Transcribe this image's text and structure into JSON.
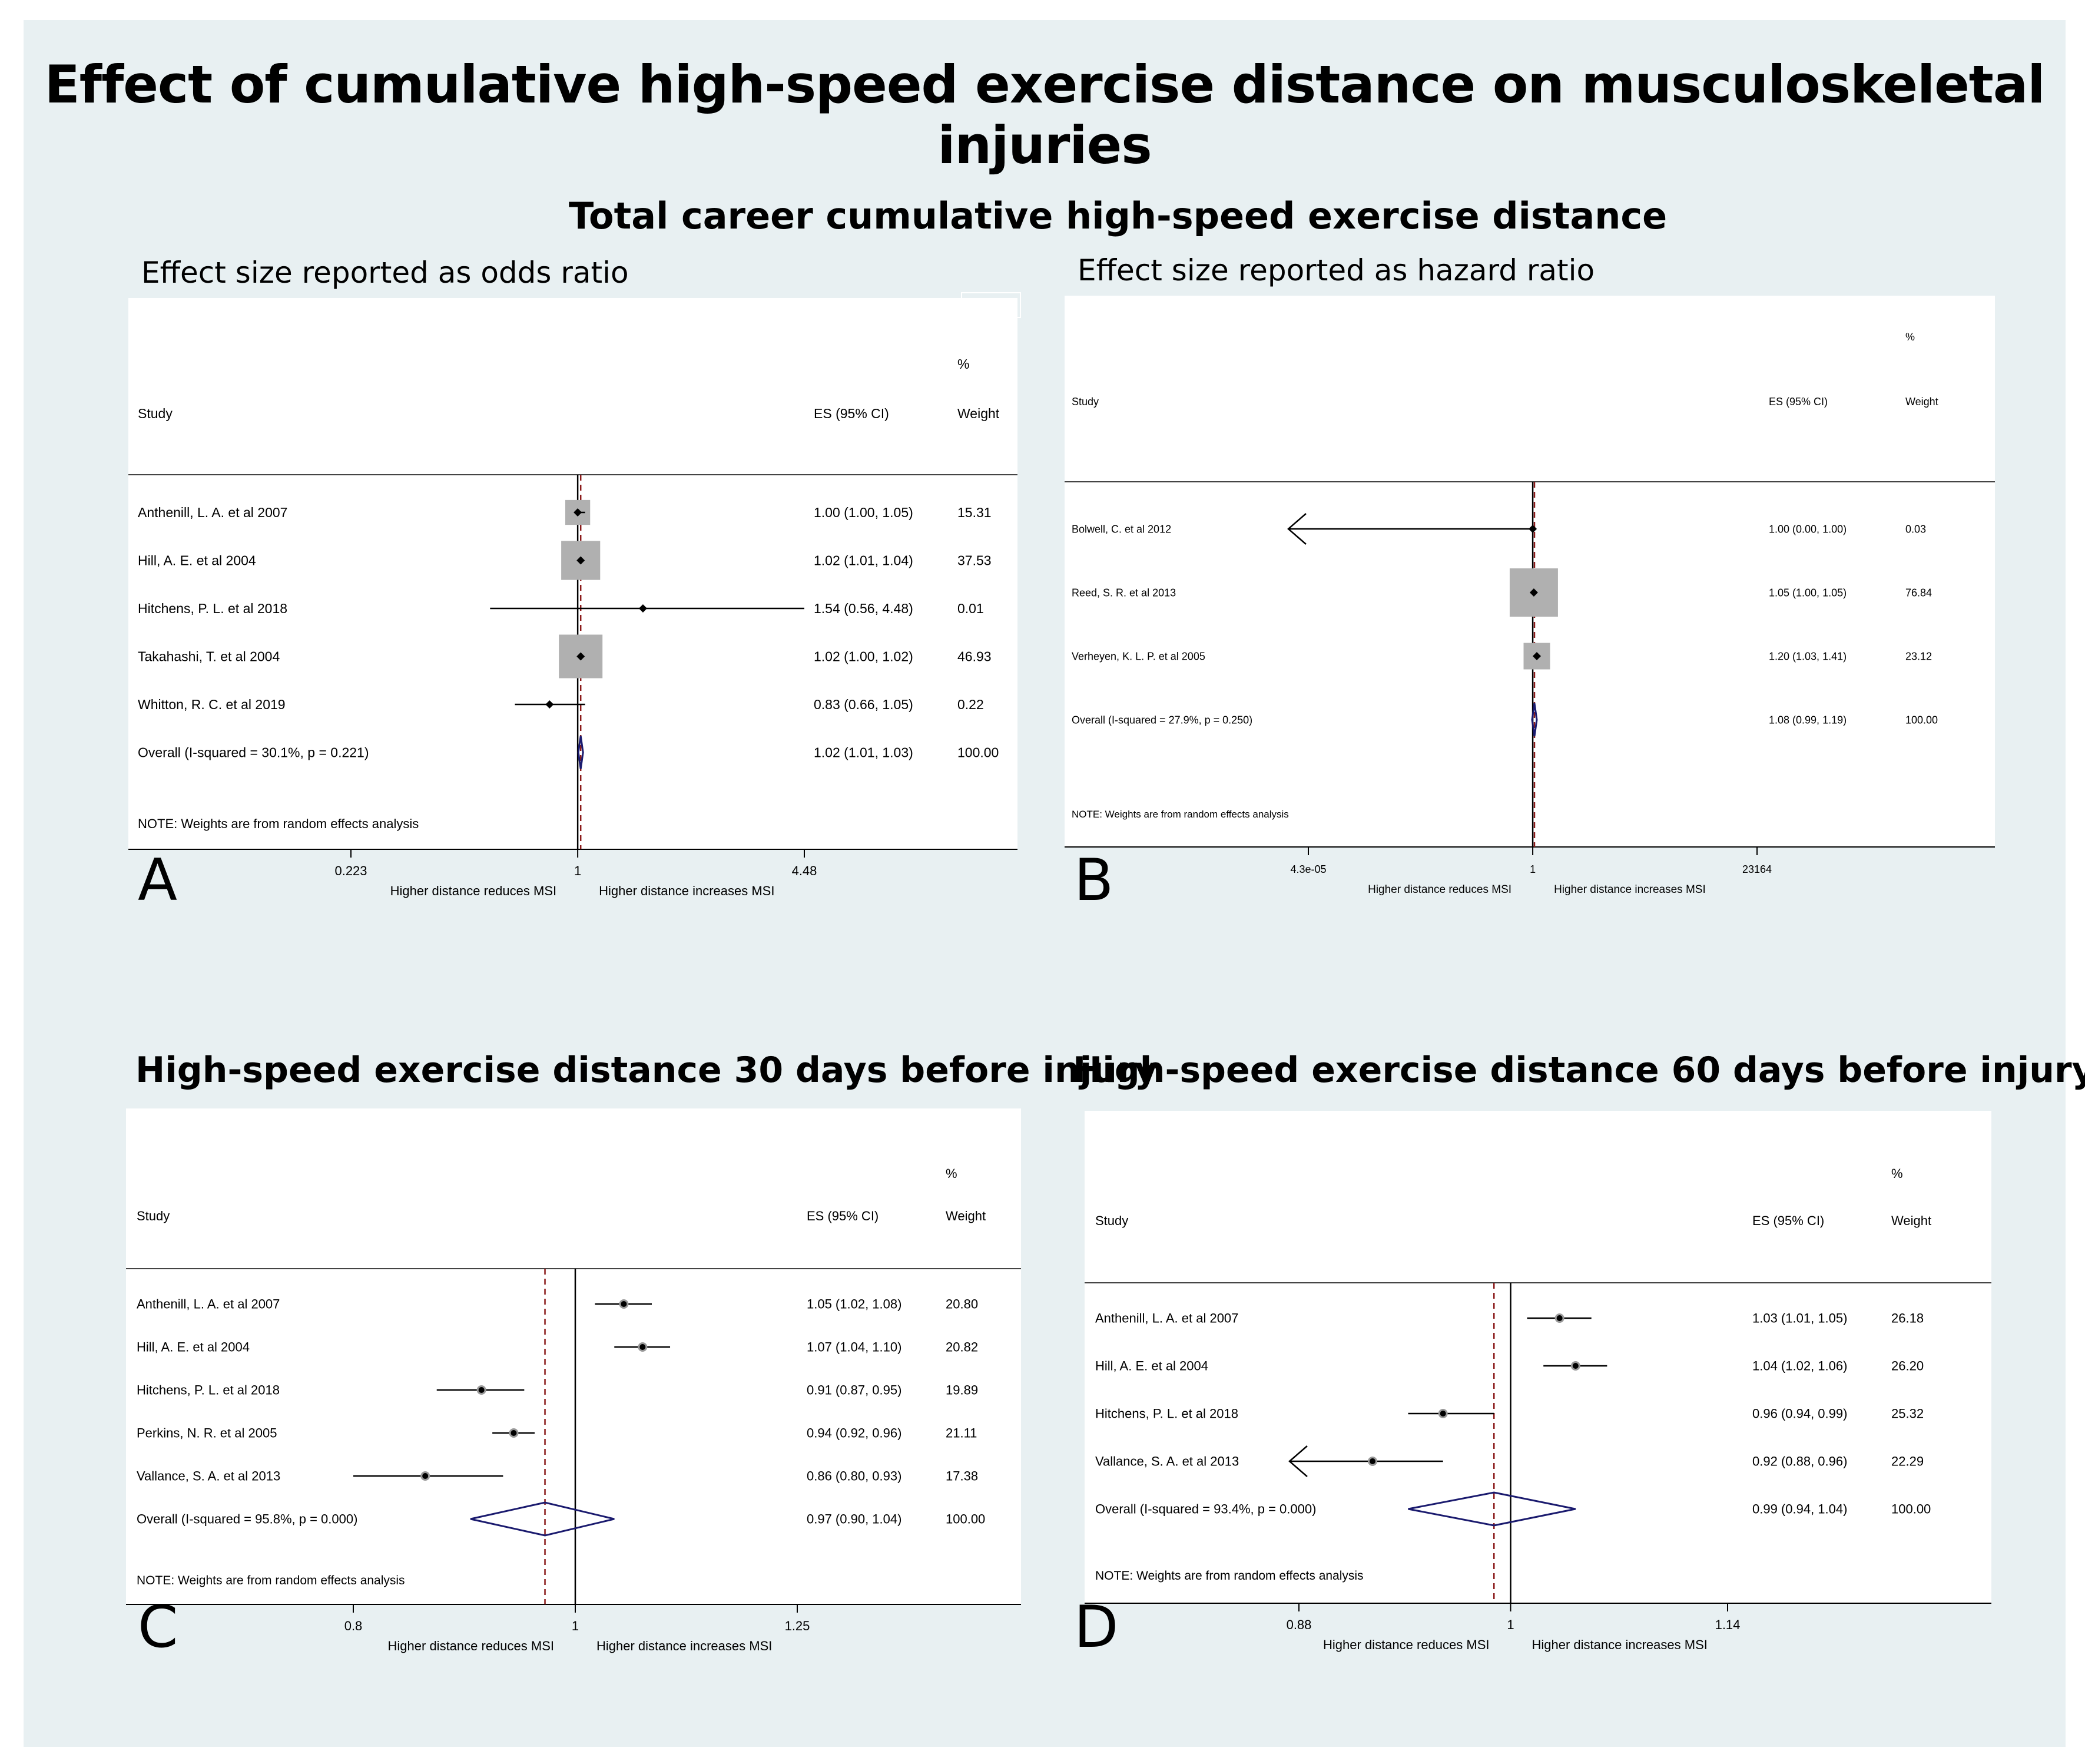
{
  "title": "Effect of cumulative high-speed exercise distance on musculoskeletal injuries",
  "sections": {
    "career": "Total career cumulative high-speed exercise distance",
    "odds_label": "Effect size reported as odds ratio",
    "hazard_label": "Effect size reported as hazard ratio",
    "days30": "High-speed exercise distance 30 days before injury",
    "days60": "High-speed exercise distance 60 days before injury"
  },
  "colors": {
    "background": "#e8f0f2",
    "weight_box": "#b0b0b0",
    "diamond": "#1a1a6e",
    "reference_line": "#8b1a1a"
  },
  "chart_data": [
    {
      "id": "A",
      "type": "forest",
      "letter": "A",
      "headers": {
        "study": "Study",
        "es": "ES (95% CI)",
        "pct": "%",
        "weight": "Weight"
      },
      "scale": "log",
      "xlim": [
        0.223,
        4.48
      ],
      "ticks": [
        {
          "value": 0.223,
          "label": "0.223"
        },
        {
          "value": 1,
          "label": "1"
        },
        {
          "value": 4.48,
          "label": "4.48"
        }
      ],
      "xlabel_left": "Higher distance reduces MSI",
      "xlabel_right": "Higher distance increases MSI",
      "studies": [
        {
          "label": "Anthenill, L. A. et al 2007",
          "es": 1.0,
          "lo": 1.0,
          "hi": 1.05,
          "es_text": "1.00 (1.00, 1.05)",
          "weight": 15.31,
          "weight_text": "15.31"
        },
        {
          "label": "Hill, A. E. et al 2004",
          "es": 1.02,
          "lo": 1.01,
          "hi": 1.04,
          "es_text": "1.02 (1.01, 1.04)",
          "weight": 37.53,
          "weight_text": "37.53"
        },
        {
          "label": "Hitchens, P. L. et al 2018",
          "es": 1.54,
          "lo": 0.56,
          "hi": 4.48,
          "es_text": "1.54 (0.56, 4.48)",
          "weight": 0.01,
          "weight_text": "0.01"
        },
        {
          "label": "Takahashi, T. et al 2004",
          "es": 1.02,
          "lo": 1.0,
          "hi": 1.02,
          "es_text": "1.02 (1.00, 1.02)",
          "weight": 46.93,
          "weight_text": "46.93"
        },
        {
          "label": "Whitton, R. C. et al 2019",
          "es": 0.83,
          "lo": 0.66,
          "hi": 1.05,
          "es_text": "0.83 (0.66, 1.05)",
          "weight": 0.22,
          "weight_text": "0.22"
        }
      ],
      "overall": {
        "label": "Overall  (I-squared = 30.1%, p = 0.221)",
        "es": 1.02,
        "lo": 1.01,
        "hi": 1.03,
        "es_text": "1.02 (1.01, 1.03)",
        "weight_text": "100.00"
      },
      "note": "NOTE: Weights are from random effects analysis"
    },
    {
      "id": "B",
      "type": "forest",
      "letter": "B",
      "headers": {
        "study": "Study",
        "es": "ES (95% CI)",
        "pct": "%",
        "weight": "Weight"
      },
      "scale": "log",
      "xlim": [
        4.3e-05,
        23164
      ],
      "ticks": [
        {
          "value": 4.3e-05,
          "label": "4.3e-05"
        },
        {
          "value": 1,
          "label": "1"
        },
        {
          "value": 23164,
          "label": "23164"
        }
      ],
      "xlabel_left": "Higher distance reduces MSI",
      "xlabel_right": "Higher distance increases MSI",
      "studies": [
        {
          "label": "Bolwell, C. et al 2012",
          "es": 1.0,
          "lo": 0.0,
          "hi": 1.0,
          "es_text": "1.00 (0.00, 1.00)",
          "weight": 0.03,
          "weight_text": "0.03",
          "arrow_left": true
        },
        {
          "label": "Reed, S. R. et al 2013",
          "es": 1.05,
          "lo": 1.0,
          "hi": 1.05,
          "es_text": "1.05 (1.00, 1.05)",
          "weight": 76.84,
          "weight_text": "76.84"
        },
        {
          "label": "Verheyen, K. L. P. et al 2005",
          "es": 1.2,
          "lo": 1.03,
          "hi": 1.41,
          "es_text": "1.20 (1.03, 1.41)",
          "weight": 23.12,
          "weight_text": "23.12"
        }
      ],
      "overall": {
        "label": "Overall  (I-squared = 27.9%, p = 0.250)",
        "es": 1.08,
        "lo": 0.99,
        "hi": 1.19,
        "es_text": "1.08 (0.99, 1.19)",
        "weight_text": "100.00"
      },
      "note": "NOTE: Weights are from random effects analysis"
    },
    {
      "id": "C",
      "type": "forest",
      "letter": "C",
      "headers": {
        "study": "Study",
        "es": "ES (95% CI)",
        "pct": "%",
        "weight": "Weight"
      },
      "scale": "log",
      "xlim": [
        0.8,
        1.25
      ],
      "ticks": [
        {
          "value": 0.8,
          "label": "0.8"
        },
        {
          "value": 1,
          "label": "1"
        },
        {
          "value": 1.25,
          "label": "1.25"
        }
      ],
      "xlabel_left": "Higher distance reduces MSI",
      "xlabel_right": "Higher distance increases MSI",
      "studies": [
        {
          "label": "Anthenill, L. A. et al 2007",
          "es": 1.05,
          "lo": 1.02,
          "hi": 1.08,
          "es_text": "1.05 (1.02, 1.08)",
          "weight": 20.8,
          "weight_text": "20.80"
        },
        {
          "label": "Hill, A. E. et al 2004",
          "es": 1.07,
          "lo": 1.04,
          "hi": 1.1,
          "es_text": "1.07 (1.04, 1.10)",
          "weight": 20.82,
          "weight_text": "20.82"
        },
        {
          "label": "Hitchens, P. L. et al 2018",
          "es": 0.91,
          "lo": 0.87,
          "hi": 0.95,
          "es_text": "0.91 (0.87, 0.95)",
          "weight": 19.89,
          "weight_text": "19.89"
        },
        {
          "label": "Perkins, N. R. et al 2005",
          "es": 0.94,
          "lo": 0.92,
          "hi": 0.96,
          "es_text": "0.94 (0.92, 0.96)",
          "weight": 21.11,
          "weight_text": "21.11"
        },
        {
          "label": "Vallance, S. A. et al 2013",
          "es": 0.86,
          "lo": 0.8,
          "hi": 0.93,
          "es_text": "0.86 (0.80, 0.93)",
          "weight": 17.38,
          "weight_text": "17.38"
        }
      ],
      "overall": {
        "label": "Overall  (I-squared = 95.8%, p = 0.000)",
        "es": 0.97,
        "lo": 0.9,
        "hi": 1.04,
        "es_text": "0.97 (0.90, 1.04)",
        "weight_text": "100.00"
      },
      "note": "NOTE: Weights are from random effects analysis"
    },
    {
      "id": "D",
      "type": "forest",
      "letter": "D",
      "headers": {
        "study": "Study",
        "es": "ES (95% CI)",
        "pct": "%",
        "weight": "Weight"
      },
      "scale": "log",
      "xlim": [
        0.88,
        1.14
      ],
      "ticks": [
        {
          "value": 0.88,
          "label": "0.88"
        },
        {
          "value": 1,
          "label": "1"
        },
        {
          "value": 1.14,
          "label": "1.14"
        }
      ],
      "xlabel_left": "Higher distance reduces MSI",
      "xlabel_right": "Higher distance increases MSI",
      "studies": [
        {
          "label": "Anthenill, L. A. et al 2007",
          "es": 1.03,
          "lo": 1.01,
          "hi": 1.05,
          "es_text": "1.03 (1.01, 1.05)",
          "weight": 26.18,
          "weight_text": "26.18"
        },
        {
          "label": "Hill, A. E. et al 2004",
          "es": 1.04,
          "lo": 1.02,
          "hi": 1.06,
          "es_text": "1.04 (1.02, 1.06)",
          "weight": 26.2,
          "weight_text": "26.20"
        },
        {
          "label": "Hitchens, P. L. et al 2018",
          "es": 0.96,
          "lo": 0.94,
          "hi": 0.99,
          "es_text": "0.96 (0.94, 0.99)",
          "weight": 25.32,
          "weight_text": "25.32"
        },
        {
          "label": "Vallance, S. A. et al 2013",
          "es": 0.92,
          "lo": 0.88,
          "hi": 0.96,
          "es_text": "0.92 (0.88, 0.96)",
          "weight": 22.29,
          "weight_text": "22.29",
          "arrow_left": true
        }
      ],
      "overall": {
        "label": "Overall  (I-squared = 93.4%, p = 0.000)",
        "es": 0.99,
        "lo": 0.94,
        "hi": 1.04,
        "es_text": "0.99 (0.94, 1.04)",
        "weight_text": "100.00"
      },
      "note": "NOTE: Weights are from random effects analysis"
    }
  ]
}
